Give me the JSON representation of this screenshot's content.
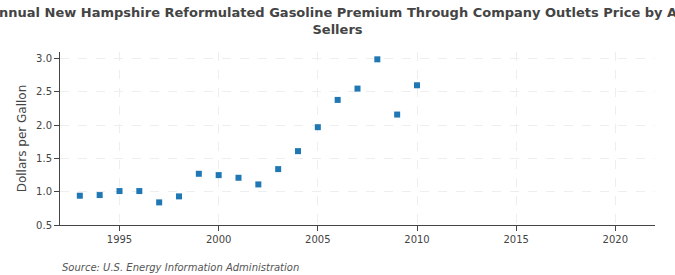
{
  "chart_data": {
    "type": "scatter",
    "title": "Annual New Hampshire Reformulated Gasoline Premium Through Company Outlets Price by All\nSellers",
    "ylabel": "Dollars per Gallon",
    "annotations": [
      "Source: U.S. Energy Information Administration"
    ],
    "x": [
      1993,
      1994,
      1995,
      1996,
      1997,
      1998,
      1999,
      2000,
      2001,
      2002,
      2003,
      2004,
      2005,
      2006,
      2007,
      2008,
      2009,
      2010
    ],
    "values": [
      0.94,
      0.95,
      1.01,
      1.01,
      0.84,
      0.93,
      1.27,
      1.25,
      1.21,
      1.11,
      1.34,
      1.61,
      1.97,
      2.38,
      2.55,
      2.99,
      2.16,
      2.6
    ],
    "marker": "square",
    "xlim": [
      1992,
      2022
    ],
    "xticks": [
      1995,
      2000,
      2005,
      2010,
      2015,
      2020
    ],
    "ylim": [
      0.5,
      3.1
    ],
    "yticks": [
      0.5,
      {
        "value": 1,
        "label": "1.0"
      },
      1.5,
      {
        "value": 2,
        "label": "2.0"
      },
      2.5,
      {
        "value": 3,
        "label": "3.0"
      }
    ],
    "grid": true
  }
}
